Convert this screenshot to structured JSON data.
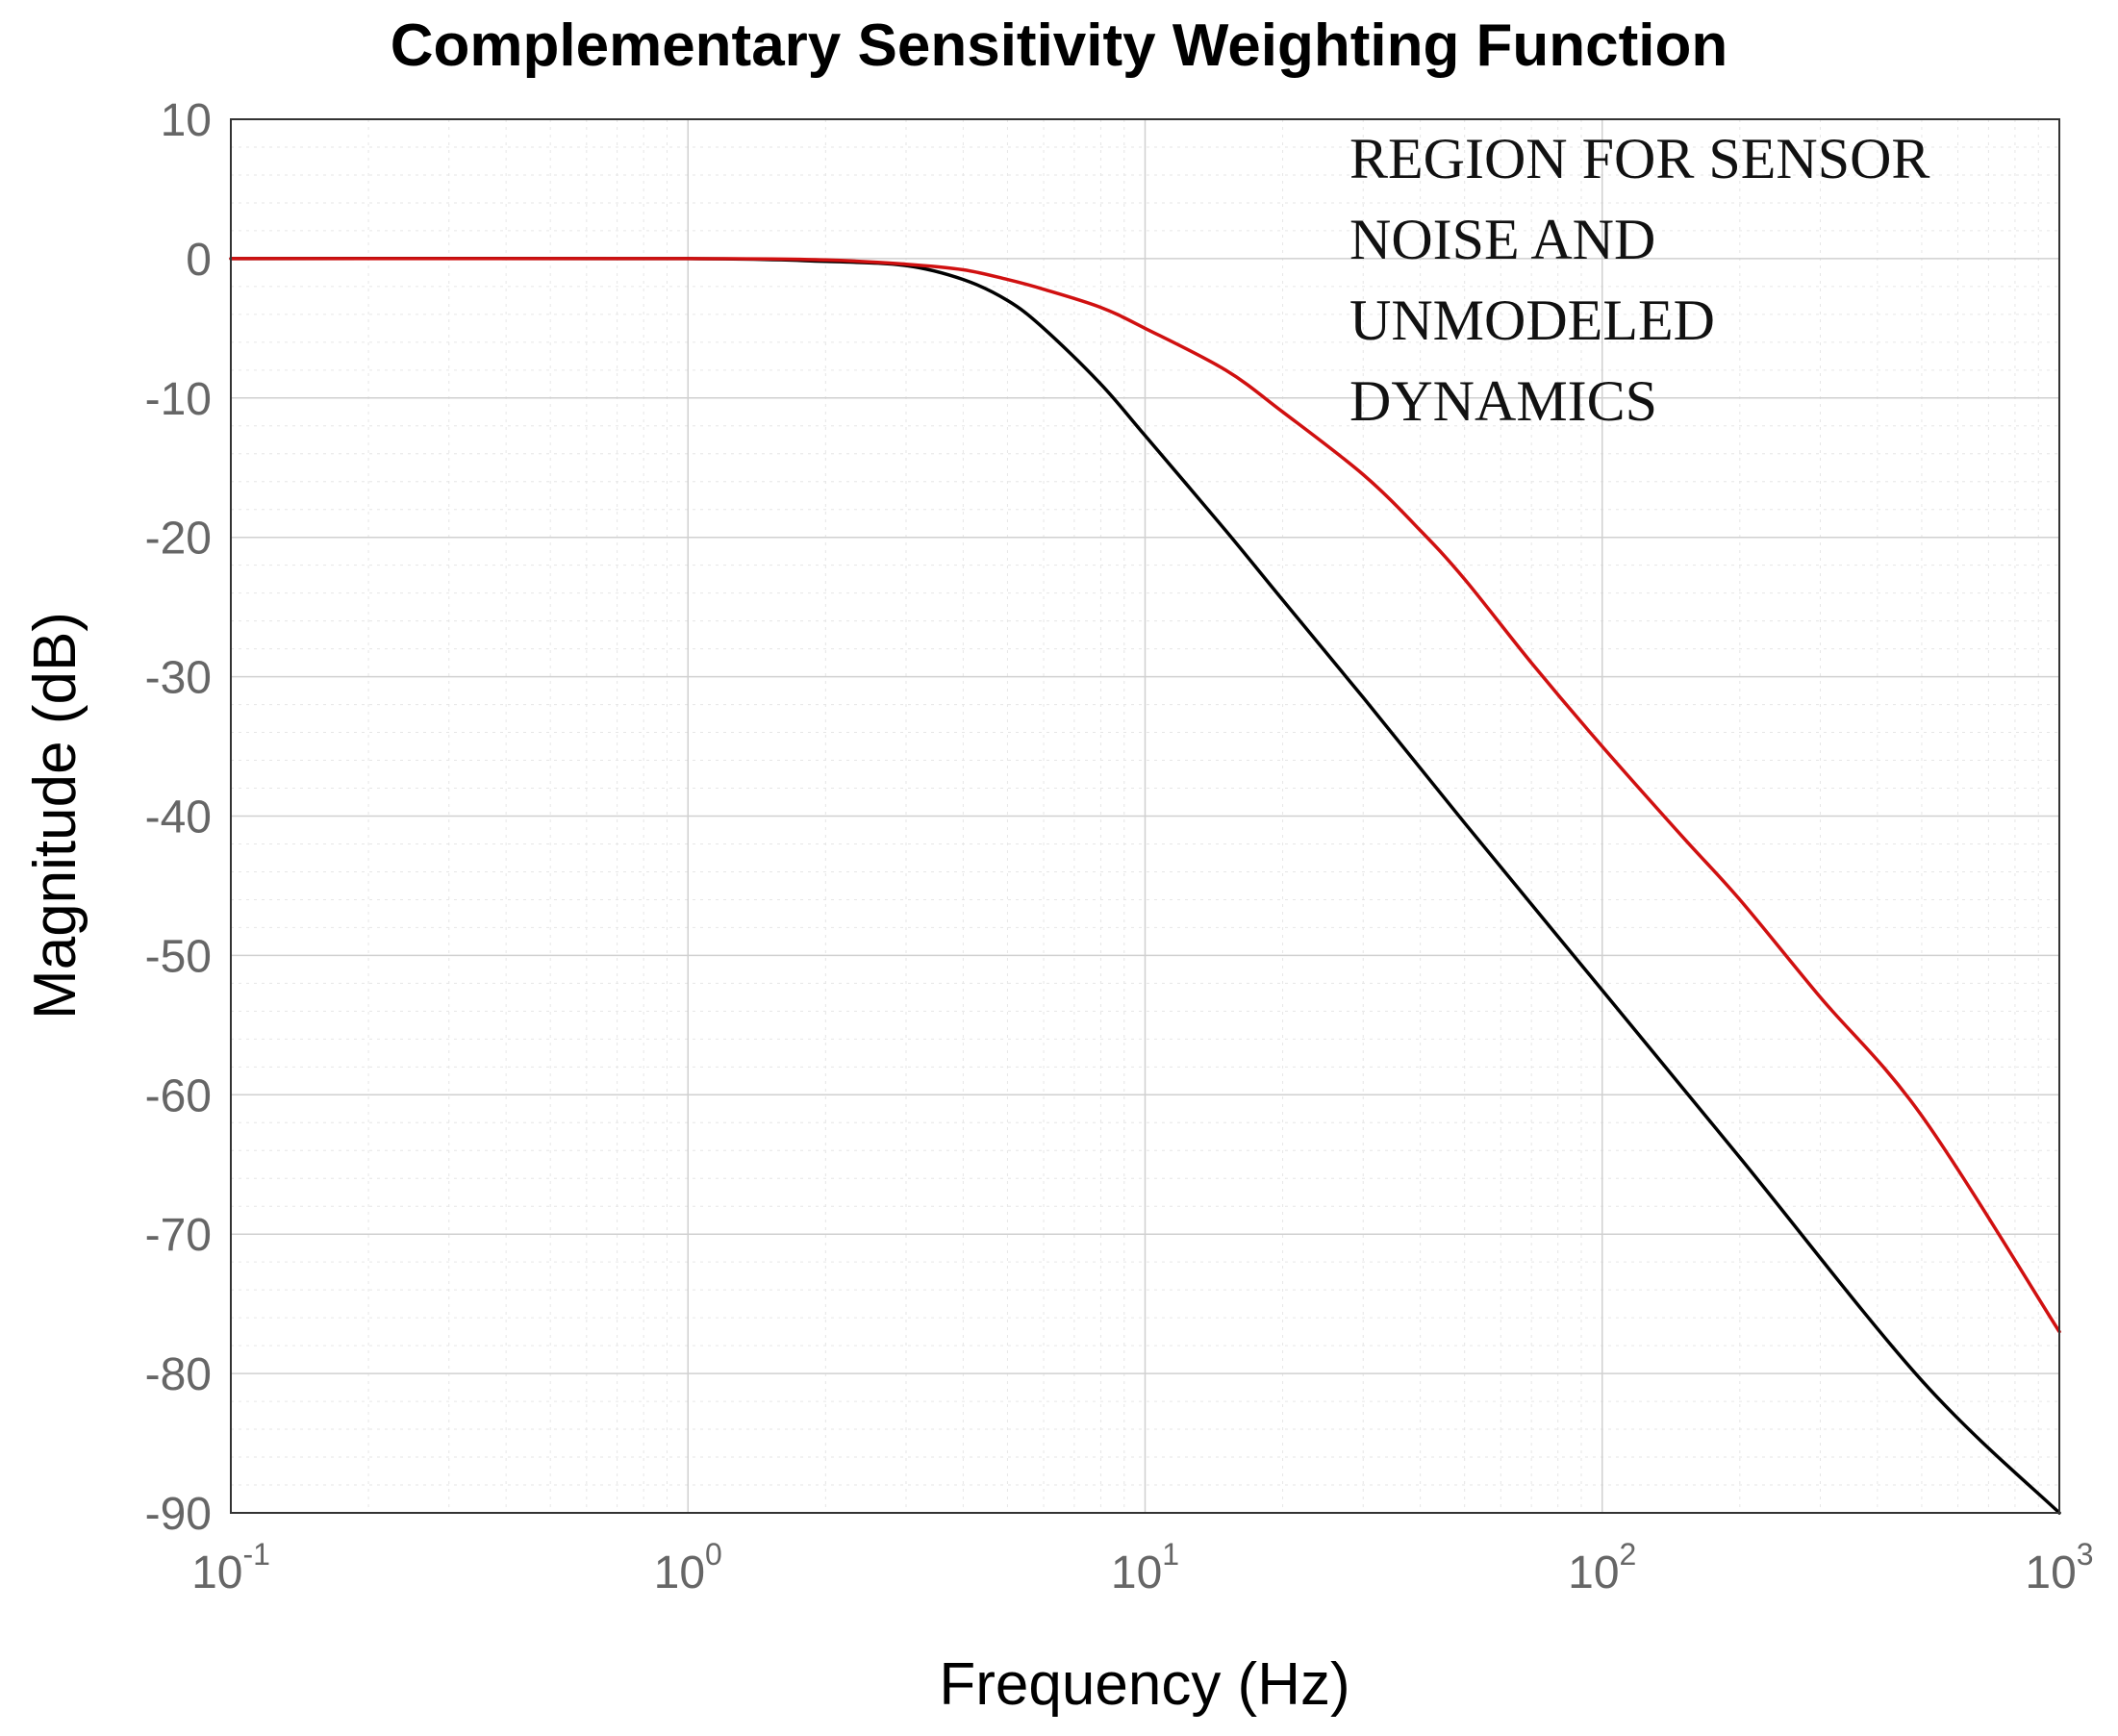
{
  "chart_data": {
    "type": "line",
    "title": "Complementary Sensitivity Weighting Function",
    "xlabel": "Frequency  (Hz)",
    "ylabel": "Magnitude (dB)",
    "xscale": "log",
    "xlim": [
      0.1,
      1000
    ],
    "ylim": [
      -90,
      10
    ],
    "grid": true,
    "x_ticks": [
      {
        "base": "10",
        "exp": "-1",
        "value": 0.1
      },
      {
        "base": "10",
        "exp": "0",
        "value": 1
      },
      {
        "base": "10",
        "exp": "1",
        "value": 10
      },
      {
        "base": "10",
        "exp": "2",
        "value": 100
      },
      {
        "base": "10",
        "exp": "3",
        "value": 1000
      }
    ],
    "y_ticks": [
      10,
      0,
      -10,
      -20,
      -30,
      -40,
      -50,
      -60,
      -70,
      -80,
      -90
    ],
    "y_tick_labels": [
      "10",
      "0",
      "-10",
      "-20",
      "-30",
      "-40",
      "-50",
      "-60",
      "-70",
      "-80",
      "-90"
    ],
    "annotation": {
      "lines": [
        "REGION FOR SENSOR",
        "NOISE AND",
        "UNMODELED",
        "DYNAMICS"
      ],
      "anchor_x_hz": 28,
      "anchor_y_db": 5.8
    },
    "series": [
      {
        "name": "black-curve",
        "color": "#000000",
        "x": [
          0.1,
          1,
          2,
          3,
          4,
          5,
          6,
          8,
          10,
          15,
          20,
          30,
          50,
          100,
          200,
          500,
          1000
        ],
        "y": [
          0,
          0,
          -0.2,
          -0.5,
          -1.5,
          -3,
          -5,
          -9,
          -12.7,
          -19.5,
          -24.5,
          -31.5,
          -40.5,
          -52.5,
          -64.5,
          -80.5,
          -90
        ]
      },
      {
        "name": "red-curve",
        "color": "#d01010",
        "x": [
          0.1,
          1,
          2,
          3,
          4,
          5,
          6,
          8,
          10,
          15,
          20,
          30,
          40,
          50,
          70,
          100,
          150,
          200,
          300,
          500,
          1000
        ],
        "y": [
          0,
          0,
          -0.1,
          -0.4,
          -0.8,
          -1.5,
          -2.2,
          -3.5,
          -5,
          -8,
          -11,
          -15.5,
          -19.5,
          -23,
          -29,
          -35,
          -41.5,
          -46,
          -53,
          -61.5,
          -77
        ]
      }
    ]
  }
}
